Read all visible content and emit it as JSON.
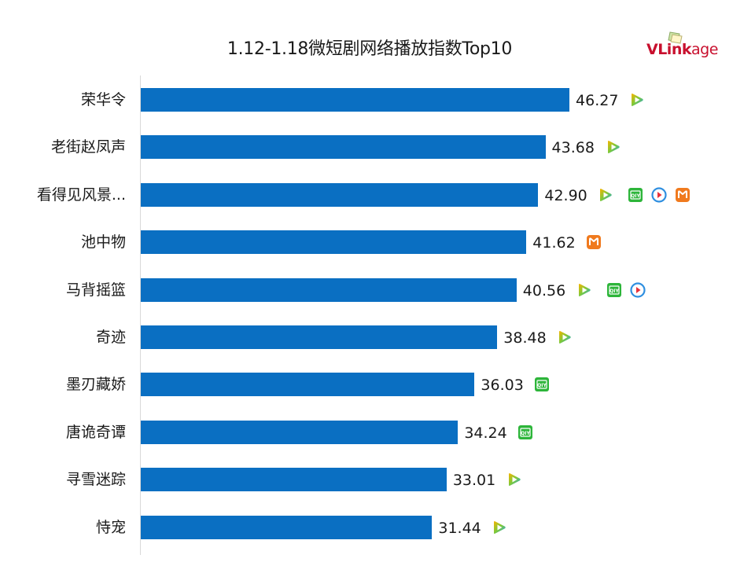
{
  "title": "1.12-1.18微短剧网络播放指数Top10",
  "logo": {
    "bold": "VLink",
    "thin": "age"
  },
  "colors": {
    "bar": "#0a6fc2",
    "logo": "#c8102e",
    "tencent_play": "#2fb0e8",
    "iqiyi": "#2db53a",
    "youku": "#2f8fe0",
    "mango": "#f07a1e"
  },
  "chart_data": {
    "type": "bar",
    "orientation": "horizontal",
    "title": "1.12-1.18微短剧网络播放指数Top10",
    "xlabel": "",
    "ylabel": "",
    "grid": false,
    "legend": null,
    "categories": [
      "荣华令",
      "老街赵凤声",
      "看得见风景...",
      "池中物",
      "马背摇篮",
      "奇迹",
      "墨刃藏娇",
      "唐诡奇谭",
      "寻雪迷踪",
      "恃宠"
    ],
    "values": [
      46.27,
      43.68,
      42.9,
      41.62,
      40.56,
      38.48,
      36.03,
      34.24,
      33.01,
      31.44
    ],
    "value_labels": [
      "46.27",
      "43.68",
      "42.90",
      "41.62",
      "40.56",
      "38.48",
      "36.03",
      "34.24",
      "33.01",
      "31.44"
    ],
    "platforms": [
      [
        "tencent-video"
      ],
      [
        "tencent-video"
      ],
      [
        "tencent-video",
        "iqiyi",
        "youku",
        "mango-tv"
      ],
      [
        "mango-tv"
      ],
      [
        "tencent-video",
        "iqiyi",
        "youku"
      ],
      [
        "tencent-video"
      ],
      [
        "iqiyi"
      ],
      [
        "iqiyi"
      ],
      [
        "tencent-video"
      ],
      [
        "tencent-video"
      ]
    ]
  },
  "rows": [
    {
      "label": "荣华令",
      "value": "46.27",
      "v": 46.27,
      "icons": [
        "tencent-video"
      ]
    },
    {
      "label": "老街赵凤声",
      "value": "43.68",
      "v": 43.68,
      "icons": [
        "tencent-video"
      ]
    },
    {
      "label": "看得见风景...",
      "value": "42.90",
      "v": 42.9,
      "icons": [
        "tencent-video",
        "iqiyi",
        "youku",
        "mango-tv"
      ]
    },
    {
      "label": "池中物",
      "value": "41.62",
      "v": 41.62,
      "icons": [
        "mango-tv"
      ]
    },
    {
      "label": "马背摇篮",
      "value": "40.56",
      "v": 40.56,
      "icons": [
        "tencent-video",
        "iqiyi",
        "youku"
      ]
    },
    {
      "label": "奇迹",
      "value": "38.48",
      "v": 38.48,
      "icons": [
        "tencent-video"
      ]
    },
    {
      "label": "墨刃藏娇",
      "value": "36.03",
      "v": 36.03,
      "icons": [
        "iqiyi"
      ]
    },
    {
      "label": "唐诡奇谭",
      "value": "34.24",
      "v": 34.24,
      "icons": [
        "iqiyi"
      ]
    },
    {
      "label": "寻雪迷踪",
      "value": "33.01",
      "v": 33.01,
      "icons": [
        "tencent-video"
      ]
    },
    {
      "label": "恃宠",
      "value": "31.44",
      "v": 31.44,
      "icons": [
        "tencent-video"
      ]
    }
  ]
}
